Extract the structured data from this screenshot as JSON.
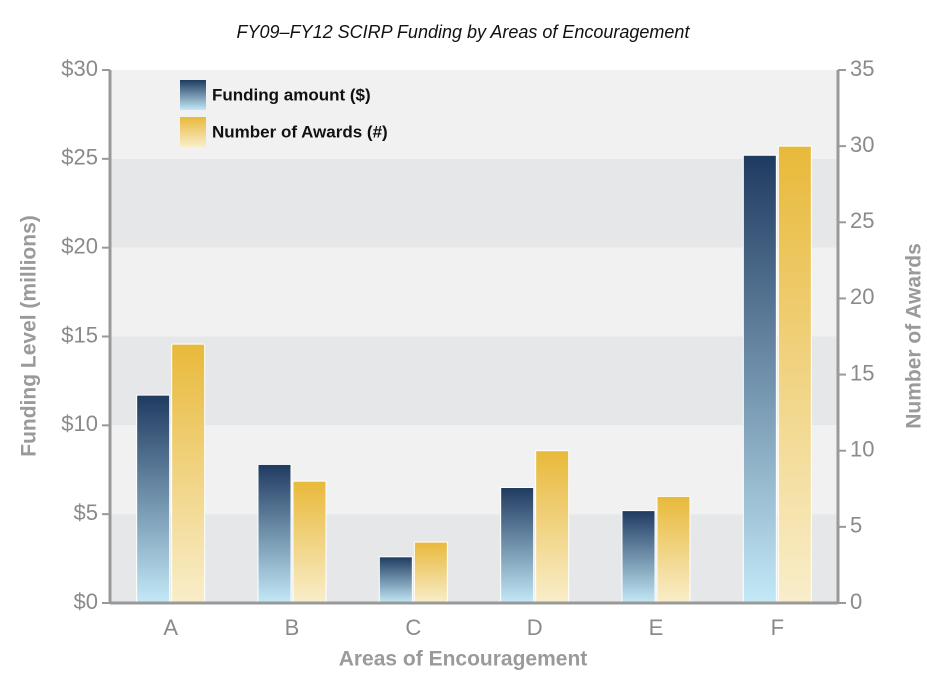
{
  "chart_data": {
    "type": "bar",
    "title": "FY09–FY12 SCIRP Funding by Areas of Encouragement",
    "x_label": "Areas of Encouragement",
    "y_label": "Funding Level (millions)",
    "y2_label": "Number of Awards",
    "categories": [
      "A",
      "B",
      "C",
      "D",
      "E",
      "F"
    ],
    "series": [
      {
        "name": "Funding amount ($)",
        "color": "#1f3a60",
        "values": [
          11.7,
          7.8,
          2.6,
          6.5,
          5.2,
          25.2
        ]
      },
      {
        "name": "Number of Awards (#)",
        "color": "#e8b93a",
        "axis": "y2",
        "values": [
          17,
          8,
          4,
          10,
          7,
          30
        ]
      }
    ],
    "ylim": [
      0,
      30
    ],
    "yticks": [
      {
        "value": 0,
        "label": "$0"
      },
      {
        "value": 5,
        "label": "$5"
      },
      {
        "value": 10,
        "label": "$10"
      },
      {
        "value": 15,
        "label": "$15"
      },
      {
        "value": 20,
        "label": "$20"
      },
      {
        "value": 25,
        "label": "$25"
      },
      {
        "value": 30,
        "label": "$30"
      }
    ],
    "y2lim": [
      0,
      35
    ],
    "y2ticks": [
      0,
      5,
      10,
      15,
      20,
      25,
      30,
      35
    ],
    "legend": "top-left"
  }
}
